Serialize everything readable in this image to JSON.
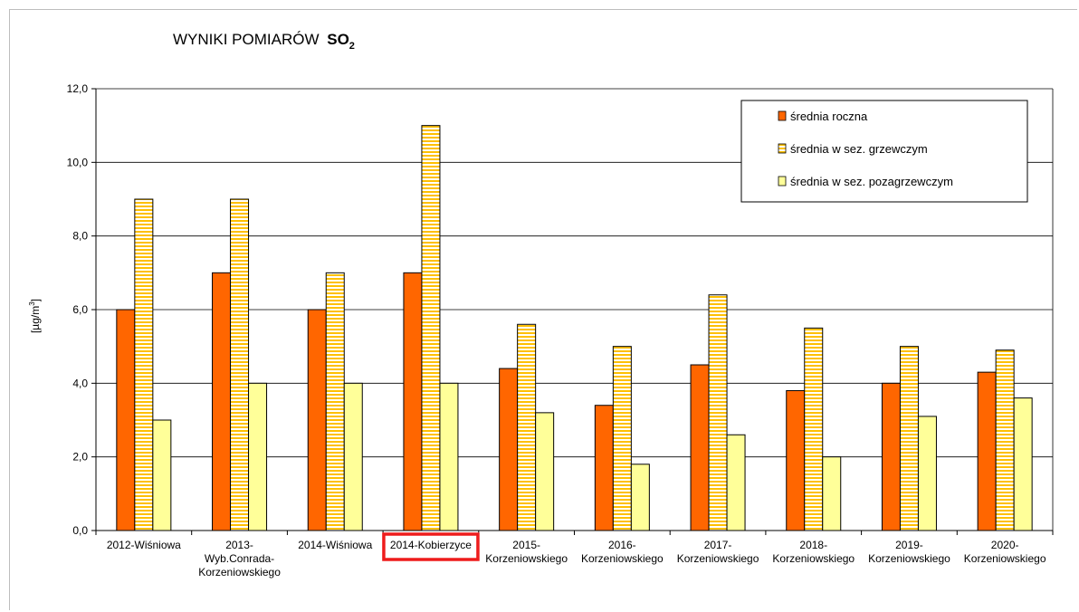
{
  "chart_data": {
    "type": "bar",
    "title": "WYNIKI POMIARÓW",
    "title_formula": {
      "main": "SO",
      "sub": "2"
    },
    "ylabel": {
      "prefix": "[µg/m",
      "sup": "3",
      "suffix": "]"
    },
    "ylim": [
      0,
      12
    ],
    "yticks": [
      "0,0",
      "2,0",
      "4,0",
      "6,0",
      "8,0",
      "10,0",
      "12,0"
    ],
    "grid": true,
    "legend_position": "top-right",
    "highlighted_category_index": 3,
    "highlight_color": "#ee1c1c",
    "categories": [
      [
        "2012-Wiśniowa"
      ],
      [
        "2013-",
        "Wyb.Conrada-",
        "Korzeniowskiego"
      ],
      [
        "2014-Wiśniowa"
      ],
      [
        "2014-Kobierzyce"
      ],
      [
        "2015-",
        "Korzeniowskiego"
      ],
      [
        "2016-",
        "Korzeniowskiego"
      ],
      [
        "2017-",
        "Korzeniowskiego"
      ],
      [
        "2018-",
        "Korzeniowskiego"
      ],
      [
        "2019-",
        "Korzeniowskiego"
      ],
      [
        "2020-",
        "Korzeniowskiego"
      ]
    ],
    "series": [
      {
        "name": "średnia roczna",
        "color": "#ff6600",
        "pattern": "solid",
        "values": [
          6.0,
          7.0,
          6.0,
          7.0,
          4.4,
          3.4,
          4.5,
          3.8,
          4.0,
          4.3
        ]
      },
      {
        "name": "średnia w sez. grzewczym",
        "color": "#ffc000",
        "pattern": "horizontal-stripes",
        "values": [
          9.0,
          9.0,
          7.0,
          11.0,
          5.6,
          5.0,
          6.4,
          5.5,
          5.0,
          4.9
        ]
      },
      {
        "name": "średnia w sez. pozagrzewczym",
        "color": "#ffff99",
        "pattern": "solid",
        "values": [
          3.0,
          4.0,
          4.0,
          4.0,
          3.2,
          1.8,
          2.6,
          2.0,
          3.1,
          3.6
        ]
      }
    ]
  }
}
